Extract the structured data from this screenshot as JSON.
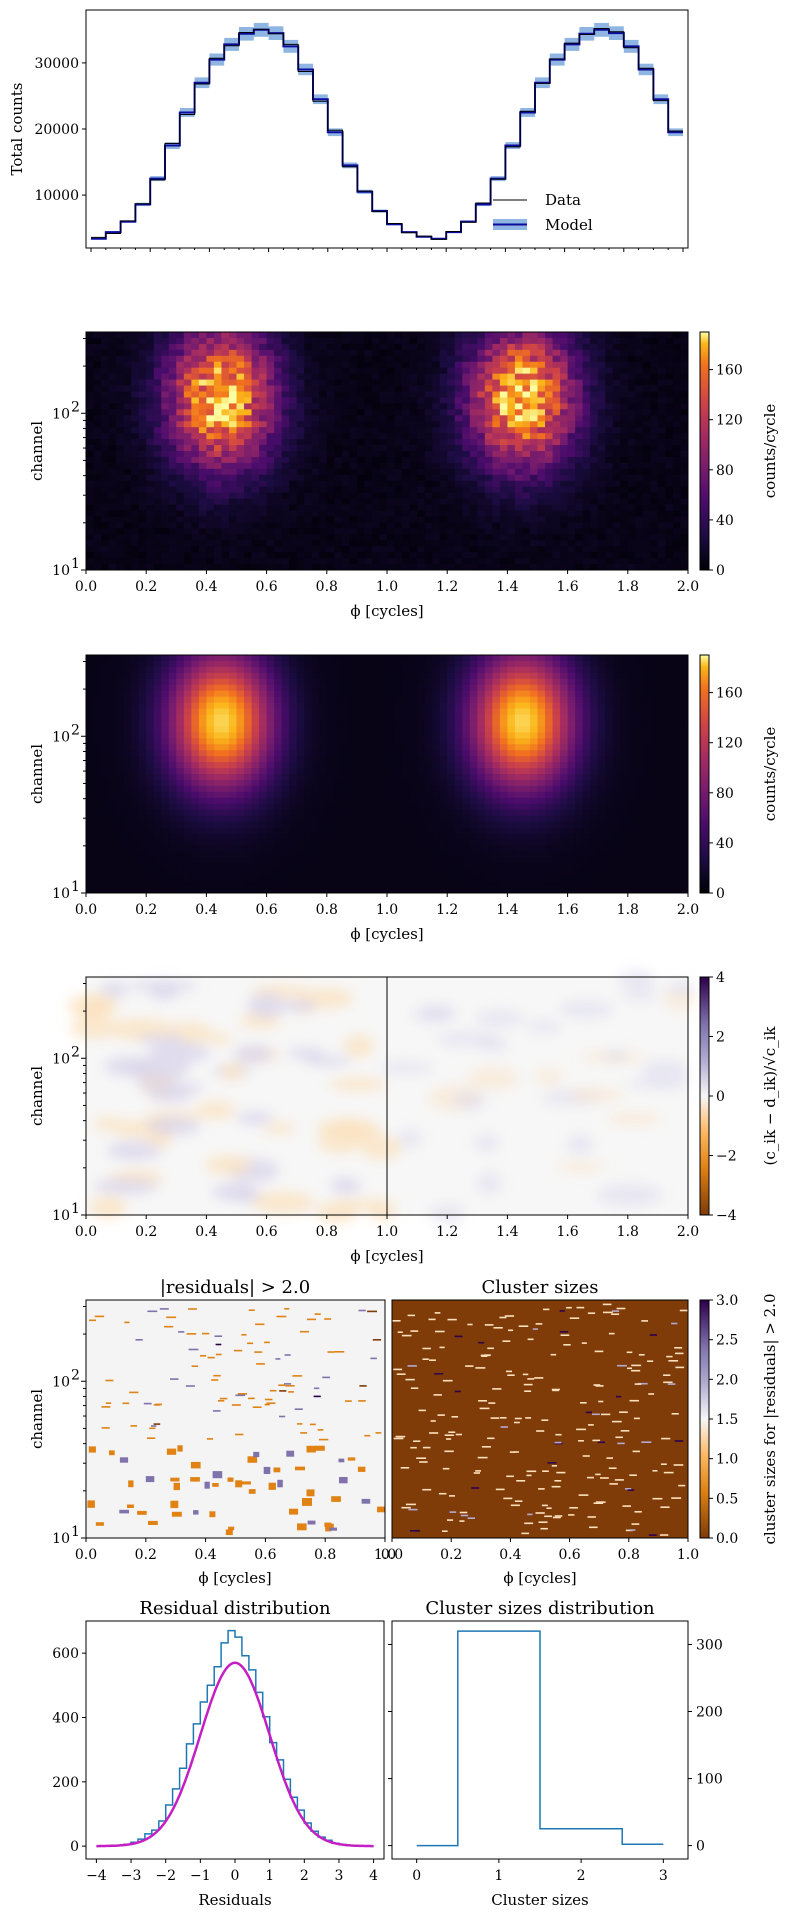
{
  "colors": {
    "data_line": "#000000",
    "model_line": "#0b0b9e",
    "model_band": "#8fb6e3",
    "hist_line": "#1f77b4",
    "fit_line": "#c41fc4",
    "cluster_bg": "#7f3b08",
    "residual_neg": "#e08214",
    "residual_pos": "#8073ac"
  },
  "chart_data": [
    {
      "id": "pulse-profile",
      "type": "line",
      "ylabel": "Total counts",
      "yticks": [
        "10000",
        "20000",
        "30000"
      ],
      "ylim": [
        2000,
        38000
      ],
      "xlim": [
        0,
        2
      ],
      "bins": 40,
      "legend": {
        "placement": "bottom-right",
        "entries": [
          "Data",
          "Model"
        ]
      },
      "model": [
        3400,
        4400,
        6000,
        8600,
        12500,
        17500,
        22500,
        27000,
        30500,
        32800,
        34400,
        35000,
        34500,
        32500,
        29000,
        24500,
        19500,
        14500,
        10500,
        7600,
        5600,
        4400,
        3700,
        3400,
        4400,
        6000,
        8600,
        12500,
        17500,
        22500,
        27000,
        30500,
        32800,
        34400,
        35000,
        34500,
        32500,
        29000,
        24500,
        19500
      ],
      "data": [
        3600,
        4200,
        6100,
        8700,
        12300,
        17800,
        22200,
        26800,
        30700,
        32600,
        34600,
        35100,
        34400,
        32800,
        28700,
        24200,
        19800,
        14300,
        10600,
        7500,
        5700,
        4300,
        3800,
        3300,
        4500,
        5900,
        8800,
        12400,
        17300,
        22700,
        26900,
        30600,
        33000,
        34300,
        35200,
        34700,
        32300,
        29200,
        24300,
        19700
      ]
    },
    {
      "id": "data-heatmap",
      "type": "heatmap",
      "xlabel": "ϕ [cycles]",
      "ylabel": "channel",
      "xlim": [
        0,
        2
      ],
      "xticks": [
        "0.0",
        "0.2",
        "0.4",
        "0.6",
        "0.8",
        "1.0",
        "1.2",
        "1.4",
        "1.6",
        "1.8",
        "2.0"
      ],
      "yticks": [
        "10",
        "10"
      ],
      "ytick_exponents": [
        "1",
        "2"
      ],
      "colorbar": {
        "label": "counts/cycle",
        "ticks": [
          "0",
          "40",
          "80",
          "120",
          "160"
        ],
        "range": [
          0,
          190
        ]
      },
      "peak_phases": [
        0.45,
        1.45
      ]
    },
    {
      "id": "model-heatmap",
      "type": "heatmap",
      "xlabel": "ϕ [cycles]",
      "ylabel": "channel",
      "xlim": [
        0,
        2
      ],
      "xticks": [
        "0.0",
        "0.2",
        "0.4",
        "0.6",
        "0.8",
        "1.0",
        "1.2",
        "1.4",
        "1.6",
        "1.8",
        "2.0"
      ],
      "yticks": [
        "10",
        "10"
      ],
      "ytick_exponents": [
        "1",
        "2"
      ],
      "colorbar": {
        "label": "counts/cycle",
        "ticks": [
          "0",
          "40",
          "80",
          "120",
          "160"
        ],
        "range": [
          0,
          190
        ]
      },
      "peak_phases": [
        0.45,
        1.45
      ]
    },
    {
      "id": "residual-map",
      "type": "heatmap",
      "xlabel": "ϕ [cycles]",
      "ylabel": "channel",
      "xlim": [
        0,
        2
      ],
      "xticks": [
        "0.0",
        "0.2",
        "0.4",
        "0.6",
        "0.8",
        "1.0",
        "1.2",
        "1.4",
        "1.6",
        "1.8",
        "2.0"
      ],
      "yticks": [
        "10",
        "10"
      ],
      "ytick_exponents": [
        "1",
        "2"
      ],
      "divider_phase": 1.0,
      "colorbar": {
        "label": "(c_ik − d_ik)/√c_ik",
        "ticks": [
          "4",
          "2",
          "0",
          "−2",
          "−4"
        ],
        "range": [
          -4,
          4
        ]
      }
    },
    {
      "id": "large-residuals",
      "type": "heatmap",
      "title": "|residuals| > 2.0",
      "xlabel": "ϕ [cycles]",
      "ylabel": "channel",
      "xlim": [
        0,
        1
      ],
      "xticks": [
        "0.0",
        "0.2",
        "0.4",
        "0.6",
        "0.8",
        "1.0"
      ],
      "yticks": [
        "10",
        "10"
      ],
      "ytick_exponents": [
        "1",
        "2"
      ]
    },
    {
      "id": "cluster-sizes-map",
      "type": "heatmap",
      "title": "Cluster sizes",
      "xlabel": "ϕ [cycles]",
      "xlim": [
        0,
        1
      ],
      "xticks": [
        "0.0",
        "0.2",
        "0.4",
        "0.6",
        "0.8",
        "1.0"
      ],
      "colorbar": {
        "label": "cluster sizes for |residuals| > 2.0",
        "ticks": [
          "0.0",
          "0.5",
          "1.0",
          "1.5",
          "2.0",
          "2.5",
          "3.0"
        ],
        "range": [
          0,
          3
        ]
      }
    },
    {
      "id": "residual-distribution",
      "type": "bar",
      "title": "Residual distribution",
      "xlabel": "Residuals",
      "xlim": [
        -4.3,
        4.3
      ],
      "ylim": [
        -40,
        700
      ],
      "xticks": [
        "−4",
        "−3",
        "−2",
        "−1",
        "0",
        "1",
        "2",
        "3",
        "4"
      ],
      "yticks": [
        "0",
        "200",
        "400",
        "600"
      ],
      "bin_edges": [
        -4.0,
        -3.8,
        -3.6,
        -3.4,
        -3.2,
        -3.0,
        -2.8,
        -2.6,
        -2.4,
        -2.2,
        -2.0,
        -1.8,
        -1.6,
        -1.4,
        -1.2,
        -1.0,
        -0.8,
        -0.6,
        -0.4,
        -0.2,
        0.0,
        0.2,
        0.4,
        0.6,
        0.8,
        1.0,
        1.2,
        1.4,
        1.6,
        1.8,
        2.0,
        2.2,
        2.4,
        2.6,
        2.8,
        3.0,
        3.2,
        3.4,
        3.6,
        3.8,
        4.0
      ],
      "counts": [
        0,
        0,
        2,
        3,
        6,
        12,
        22,
        38,
        50,
        78,
        128,
        178,
        242,
        318,
        380,
        448,
        500,
        558,
        632,
        670,
        650,
        592,
        548,
        478,
        402,
        322,
        268,
        208,
        152,
        112,
        72,
        46,
        28,
        18,
        9,
        5,
        2,
        1,
        0,
        0
      ],
      "fit": {
        "type": "gaussian",
        "amplitude": 570,
        "mean": 0.0,
        "sigma": 1.0
      }
    },
    {
      "id": "cluster-sizes-distribution",
      "type": "bar",
      "title": "Cluster sizes distribution",
      "xlabel": "Cluster sizes",
      "xlim": [
        -0.3,
        3.3
      ],
      "ylim": [
        -20,
        335
      ],
      "xticks": [
        "0",
        "1",
        "2",
        "3"
      ],
      "yticks": [
        "0",
        "100",
        "200",
        "300"
      ],
      "steps": [
        {
          "x0": 0.0,
          "x1": 0.5,
          "value": 0
        },
        {
          "x0": 0.5,
          "x1": 1.5,
          "value": 320
        },
        {
          "x0": 1.5,
          "x1": 2.5,
          "value": 25
        },
        {
          "x0": 2.5,
          "x1": 3.0,
          "value": 2
        }
      ]
    }
  ]
}
